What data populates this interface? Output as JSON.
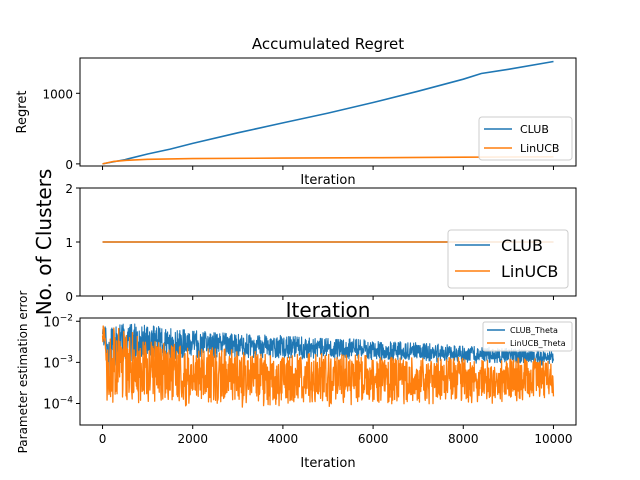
{
  "colors": {
    "clubColor": "#1f77b4",
    "linucbColor": "#ff7f0e",
    "axisColor": "#000000",
    "legendEdge": "#cccccc",
    "background": "#ffffff"
  },
  "chart_data": [
    {
      "type": "line",
      "title": "Accumulated Regret",
      "xlabel": "Iteration",
      "ylabel": "Regret",
      "xlim": [
        -500,
        10500
      ],
      "ylim": [
        -30,
        1500
      ],
      "y_ticks": [
        0,
        1000
      ],
      "x_ticklabels_shown": false,
      "legend": {
        "position": "lower-right",
        "entries": [
          "CLUB",
          "LinUCB"
        ]
      },
      "series": [
        {
          "name": "CLUB",
          "x": [
            0,
            500,
            1000,
            1500,
            2000,
            3000,
            4000,
            5000,
            6000,
            7000,
            8000,
            8400,
            9000,
            10000
          ],
          "y": [
            0,
            60,
            140,
            210,
            290,
            440,
            580,
            720,
            870,
            1030,
            1200,
            1280,
            1340,
            1450
          ]
        },
        {
          "name": "LinUCB",
          "x": [
            0,
            250,
            500,
            1000,
            2000,
            4000,
            6000,
            8000,
            10000
          ],
          "y": [
            0,
            35,
            50,
            65,
            75,
            82,
            88,
            94,
            100
          ]
        }
      ]
    },
    {
      "type": "line",
      "xlabel": "Iteration",
      "ylabel": "No. of Clusters",
      "xlim": [
        -500,
        10500
      ],
      "ylim": [
        0,
        2
      ],
      "y_ticks": [
        0,
        1,
        2
      ],
      "x_ticklabels_shown": false,
      "legend": {
        "position": "lower-right",
        "entries": [
          "CLUB",
          "LinUCB"
        ]
      },
      "series": [
        {
          "name": "CLUB",
          "x": [
            0,
            10000
          ],
          "y": [
            1,
            1
          ]
        },
        {
          "name": "LinUCB",
          "x": [
            0,
            10000
          ],
          "y": [
            1,
            1
          ]
        }
      ]
    },
    {
      "type": "line",
      "xlabel": "Iteration",
      "ylabel": "Parameter estimation error",
      "yscale": "log",
      "xlim": [
        -500,
        10500
      ],
      "ylim": [
        3e-05,
        0.012
      ],
      "x_ticks": [
        0,
        2000,
        4000,
        6000,
        8000,
        10000
      ],
      "y_ticks": [
        0.0001,
        0.001,
        0.01
      ],
      "y_ticklabels": [
        "10^-4",
        "10^-3",
        "10^-2"
      ],
      "legend": {
        "position": "top-right",
        "entries": [
          "CLUB_Theta",
          "LinUCB_Theta"
        ]
      },
      "series": [
        {
          "name": "CLUB_Theta",
          "x": [
            0,
            100,
            200,
            500,
            1000,
            1500,
            2000,
            3000,
            4000,
            5000,
            6000,
            7000,
            8000,
            9000,
            10000
          ],
          "y_high": [
            0.008,
            0.009,
            0.009,
            0.009,
            0.008,
            0.007,
            0.006,
            0.005,
            0.0045,
            0.004,
            0.0035,
            0.003,
            0.0025,
            0.0022,
            0.002
          ],
          "y_low": [
            0.003,
            8e-05,
            0.0003,
            0.0008,
            0.0009,
            0.001,
            0.0011,
            0.0011,
            0.0011,
            0.0011,
            0.001,
            0.001,
            0.0009,
            0.0009,
            0.0008
          ]
        },
        {
          "name": "LinUCB_Theta",
          "x": [
            0,
            100,
            200,
            500,
            1000,
            1500,
            2000,
            3000,
            4000,
            5000,
            6000,
            7000,
            8000,
            9000,
            10000
          ],
          "y_high": [
            0.008,
            0.009,
            0.008,
            0.006,
            0.004,
            0.003,
            0.0025,
            0.002,
            0.0018,
            0.0016,
            0.0015,
            0.0014,
            0.0013,
            0.0013,
            0.0012
          ],
          "y_low": [
            0.003,
            7e-05,
            0.0001,
            0.0001,
            0.0001,
            8e-05,
            7e-05,
            8e-05,
            8e-05,
            8e-05,
            8e-05,
            9e-05,
            0.0001,
            0.0001,
            0.0001
          ]
        }
      ]
    }
  ]
}
